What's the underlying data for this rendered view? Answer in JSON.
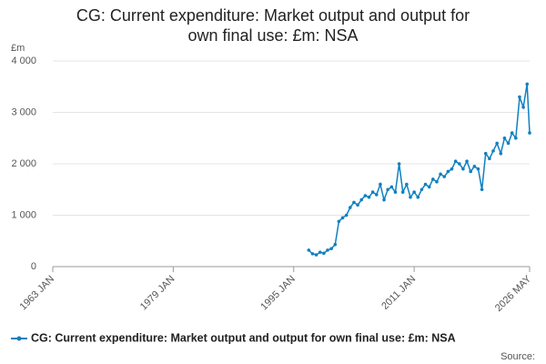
{
  "chart_data": {
    "type": "line",
    "title": [
      "CG: Current expenditure: Market output and output for",
      "own final use: £m: NSA"
    ],
    "y_unit": "£m",
    "source": "Source:",
    "x": [
      "1997 JAN",
      "1997 JUL",
      "1998 JAN",
      "1998 JUL",
      "1999 JAN",
      "1999 JUL",
      "2000 JAN",
      "2000 JUL",
      "2001 JAN",
      "2001 JUL",
      "2002 JAN",
      "2002 JUL",
      "2003 JAN",
      "2003 JUL",
      "2004 JAN",
      "2004 JUL",
      "2005 JAN",
      "2005 JUL",
      "2006 JAN",
      "2006 JUL",
      "2007 JAN",
      "2007 JUL",
      "2008 JAN",
      "2008 JUL",
      "2009 JAN",
      "2009 JUL",
      "2010 JAN",
      "2010 JUL",
      "2011 JAN",
      "2011 JUL",
      "2012 JAN",
      "2012 JUL",
      "2013 JAN",
      "2013 JUL",
      "2014 JAN",
      "2014 JUL",
      "2015 JAN",
      "2015 JUL",
      "2016 JAN",
      "2016 JUL",
      "2017 JAN",
      "2017 JUL",
      "2018 JAN",
      "2018 JUL",
      "2019 JAN",
      "2019 JUL",
      "2020 JAN",
      "2020 JUL",
      "2021 JAN",
      "2021 JUL",
      "2022 JAN",
      "2022 JUL",
      "2023 JAN",
      "2023 JUL",
      "2024 JAN",
      "2024 JUL",
      "2025 JAN",
      "2025 JUL",
      "2026 JAN",
      "2026 MAY"
    ],
    "series": [
      {
        "name": "CG: Current expenditure: Market output and output for own final use: £m: NSA",
        "color": "#0f80c0",
        "values": [
          320,
          250,
          230,
          280,
          260,
          320,
          350,
          430,
          880,
          950,
          1000,
          1150,
          1250,
          1200,
          1300,
          1380,
          1350,
          1450,
          1400,
          1600,
          1300,
          1500,
          1550,
          1450,
          2000,
          1450,
          1600,
          1350,
          1450,
          1350,
          1500,
          1600,
          1550,
          1700,
          1650,
          1800,
          1750,
          1850,
          1900,
          2050,
          2000,
          1900,
          2050,
          1850,
          1950,
          1900,
          1500,
          2200,
          2100,
          2250,
          2400,
          2200,
          2500,
          2400,
          2600,
          2500,
          3300,
          3100,
          3550,
          2600
        ]
      }
    ],
    "xlim": [
      "1963 JAN",
      "2026 MAY"
    ],
    "xticks": [
      "1963 JAN",
      "1979 JAN",
      "1995 JAN",
      "2011 JAN",
      "2026 MAY"
    ],
    "ylim": [
      0,
      4000
    ],
    "yticks": [
      0,
      {
        "value": 1000,
        "label": "1 000"
      },
      {
        "value": 2000,
        "label": "2 000"
      },
      {
        "value": 3000,
        "label": "3 000"
      },
      {
        "value": 4000,
        "label": "4 000"
      }
    ],
    "grid": true
  }
}
